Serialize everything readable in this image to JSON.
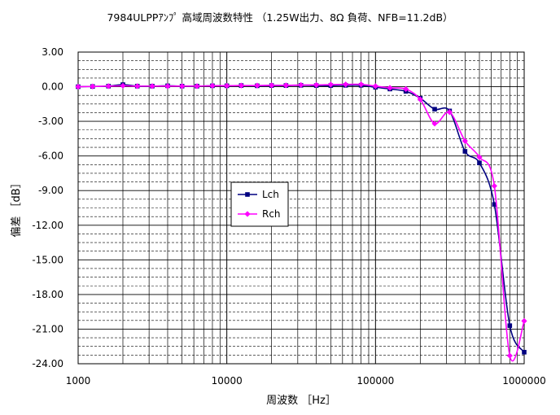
{
  "chart_data": {
    "type": "line",
    "title": "7984ULPPｱﾝﾌﾟ 高域周波数特性 （1.25W出力、8Ω 負荷、NFB=11.2dB）",
    "xlabel": "周波数 ［Hz］",
    "ylabel": "偏差 ［dB］",
    "x_scale": "log",
    "xlim": [
      1000,
      1000000
    ],
    "ylim": [
      -24,
      3
    ],
    "x_ticks": [
      1000,
      10000,
      100000,
      1000000
    ],
    "x_tick_labels": [
      "1000",
      "10000",
      "100000",
      "1000000"
    ],
    "y_ticks": [
      3,
      0,
      -3,
      -6,
      -9,
      -12,
      -15,
      -18,
      -21,
      -24
    ],
    "y_tick_labels": [
      "3.00",
      "0.00",
      "-3.00",
      "-6.00",
      "-9.00",
      "-12.00",
      "-15.00",
      "-18.00",
      "-21.00",
      "-24.00"
    ],
    "grid": true,
    "legend": "center-left",
    "series": [
      {
        "name": "Lch",
        "color": "#000080",
        "marker": "square",
        "x": [
          1000,
          1250,
          1600,
          2000,
          2500,
          3150,
          4000,
          5000,
          6300,
          8000,
          10000,
          12500,
          16000,
          20000,
          25000,
          31500,
          40000,
          50000,
          63000,
          80000,
          100000,
          125000,
          160000,
          200000,
          250000,
          315000,
          400000,
          500000,
          630000,
          800000,
          1000000
        ],
        "y": [
          0.0,
          0.02,
          0.05,
          0.18,
          0.05,
          0.05,
          0.08,
          0.05,
          0.05,
          0.08,
          0.08,
          0.1,
          0.08,
          0.1,
          0.1,
          0.12,
          0.1,
          0.1,
          0.12,
          0.12,
          -0.05,
          -0.2,
          -0.4,
          -1.0,
          -1.95,
          -2.1,
          -5.6,
          -6.6,
          -10.2,
          -20.7,
          -23.0
        ]
      },
      {
        "name": "Rch",
        "color": "#ff00ff",
        "marker": "diamond",
        "x": [
          1000,
          1250,
          1600,
          2000,
          2500,
          3150,
          4000,
          5000,
          6300,
          8000,
          10000,
          12500,
          16000,
          20000,
          25000,
          31500,
          40000,
          50000,
          63000,
          80000,
          100000,
          125000,
          160000,
          200000,
          250000,
          315000,
          400000,
          500000,
          630000,
          800000,
          1000000
        ],
        "y": [
          0.0,
          0.02,
          0.05,
          0.08,
          0.05,
          0.05,
          0.05,
          0.05,
          0.05,
          0.08,
          0.08,
          0.1,
          0.1,
          0.12,
          0.12,
          0.15,
          0.15,
          0.18,
          0.2,
          0.2,
          0.05,
          -0.1,
          -0.2,
          -1.1,
          -3.2,
          -2.2,
          -4.7,
          -6.1,
          -8.6,
          -23.3,
          -20.3
        ]
      }
    ]
  }
}
